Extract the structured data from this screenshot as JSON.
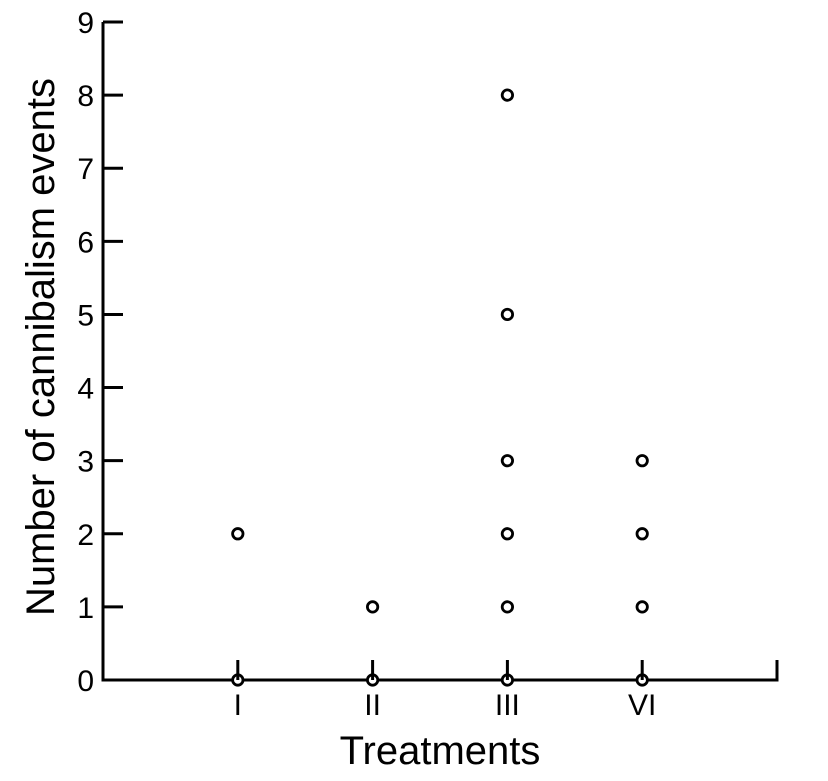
{
  "chart_data": {
    "type": "scatter",
    "title": "",
    "xlabel": "Treatments",
    "ylabel": "Number of cannibalism events",
    "categories": [
      "I",
      "II",
      "III",
      "VI"
    ],
    "yticks": [
      0,
      1,
      2,
      3,
      4,
      5,
      6,
      7,
      8,
      9
    ],
    "ylim": [
      0,
      9
    ],
    "grid": false,
    "legend": "none",
    "marker": "open-circle",
    "marker_color": "#000000",
    "marker_fill": "#ffffff",
    "axis_color": "#000000",
    "background_color": "#ffffff",
    "series": [
      {
        "category": "I",
        "values": [
          0,
          2
        ]
      },
      {
        "category": "II",
        "values": [
          0,
          1
        ]
      },
      {
        "category": "III",
        "values": [
          0,
          1,
          2,
          3,
          5,
          8
        ]
      },
      {
        "category": "VI",
        "values": [
          0,
          1,
          2,
          3
        ]
      }
    ]
  }
}
